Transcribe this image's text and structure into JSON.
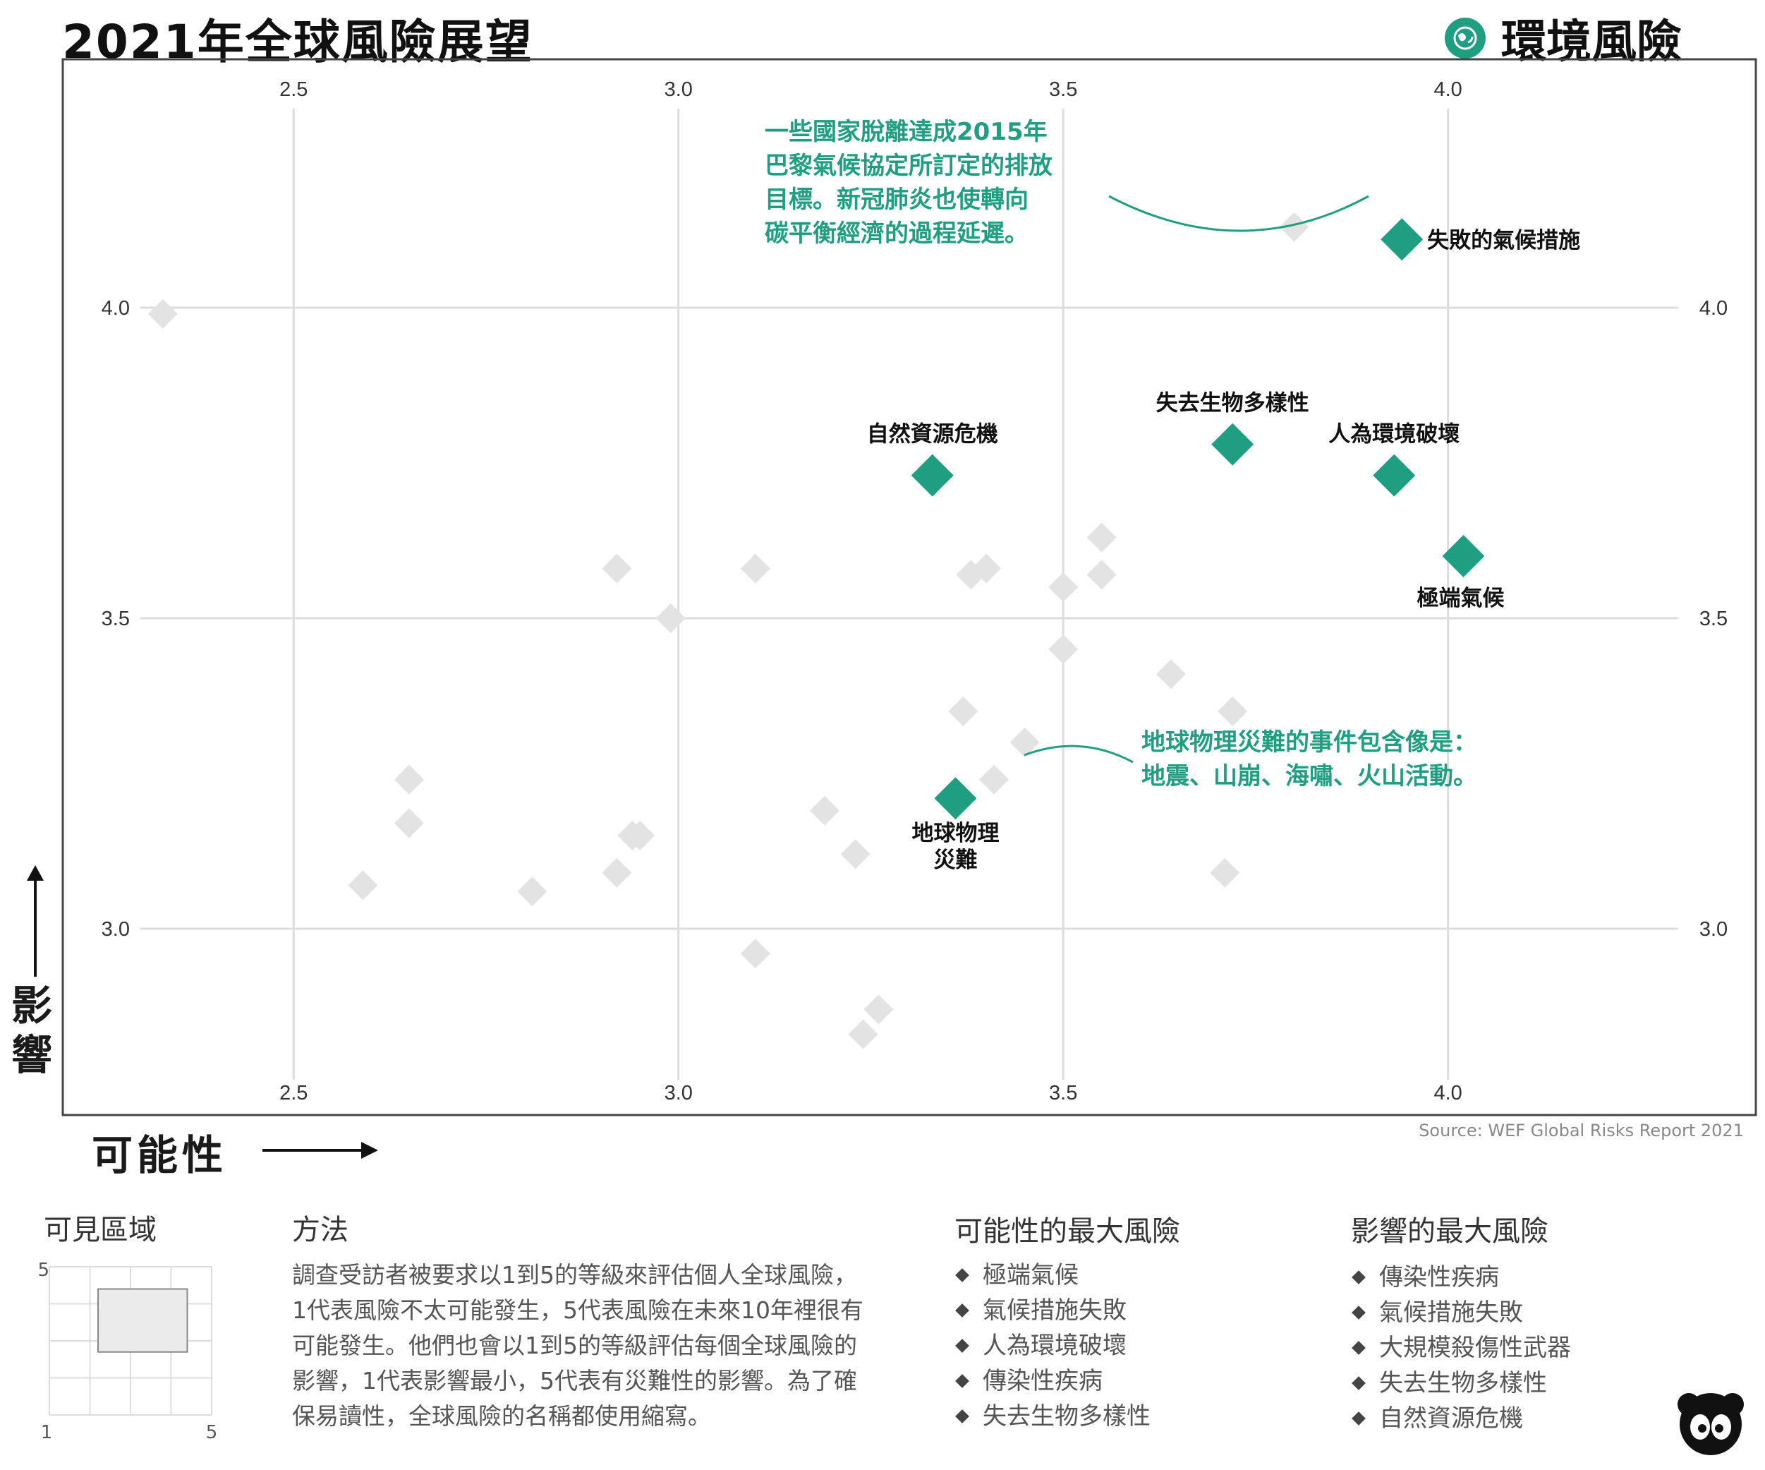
{
  "header": {
    "title": "2021年全球風險展望",
    "category": "環境風險",
    "category_icon": "globe-leaf-icon",
    "accent_color": "#1f9e82"
  },
  "chart_data": {
    "type": "scatter",
    "title": "2021年全球風險展望",
    "xlabel": "可能性",
    "ylabel": "影響",
    "xlim": [
      2.2,
      4.4
    ],
    "ylim": [
      2.7,
      4.4
    ],
    "x_ticks": [
      "2.5",
      "3.0",
      "3.5",
      "4.0"
    ],
    "y_ticks": [
      "3.0",
      "3.5",
      "4.0"
    ],
    "grid": true,
    "highlighted_series": [
      {
        "label": "失敗的氣候措施",
        "x": 3.94,
        "y": 4.11
      },
      {
        "label": "失去生物多樣性",
        "x": 3.72,
        "y": 3.78
      },
      {
        "label": "人為環境破壞",
        "x": 3.93,
        "y": 3.73
      },
      {
        "label": "自然資源危機",
        "x": 3.33,
        "y": 3.73
      },
      {
        "label": "極端氣候",
        "x": 4.02,
        "y": 3.6
      },
      {
        "label": "地球物理災難",
        "x": 3.36,
        "y": 3.21
      }
    ],
    "other_risks": [
      {
        "x": 2.33,
        "y": 3.99
      },
      {
        "x": 3.8,
        "y": 4.13
      },
      {
        "x": 2.92,
        "y": 3.58
      },
      {
        "x": 3.1,
        "y": 3.58
      },
      {
        "x": 2.99,
        "y": 3.5
      },
      {
        "x": 3.38,
        "y": 3.57
      },
      {
        "x": 3.4,
        "y": 3.58
      },
      {
        "x": 3.5,
        "y": 3.55
      },
      {
        "x": 3.55,
        "y": 3.63
      },
      {
        "x": 3.55,
        "y": 3.57
      },
      {
        "x": 3.5,
        "y": 3.45
      },
      {
        "x": 3.64,
        "y": 3.41
      },
      {
        "x": 3.37,
        "y": 3.35
      },
      {
        "x": 3.72,
        "y": 3.35
      },
      {
        "x": 3.45,
        "y": 3.3
      },
      {
        "x": 3.41,
        "y": 3.24
      },
      {
        "x": 2.65,
        "y": 3.24
      },
      {
        "x": 2.65,
        "y": 3.17
      },
      {
        "x": 3.19,
        "y": 3.19
      },
      {
        "x": 2.95,
        "y": 3.15
      },
      {
        "x": 2.94,
        "y": 3.15
      },
      {
        "x": 2.92,
        "y": 3.09
      },
      {
        "x": 2.59,
        "y": 3.07
      },
      {
        "x": 2.81,
        "y": 3.06
      },
      {
        "x": 3.23,
        "y": 3.12
      },
      {
        "x": 3.71,
        "y": 3.09
      },
      {
        "x": 3.1,
        "y": 2.96
      },
      {
        "x": 3.26,
        "y": 2.87
      },
      {
        "x": 3.24,
        "y": 2.83
      }
    ],
    "annotations": [
      {
        "target": "失敗的氣候措施",
        "text": [
          "一些國家脫離達成2015年",
          "巴黎氣候協定所訂定的排放",
          "目標。新冠肺炎也使轉向",
          "碳平衡經濟的過程延遲。"
        ]
      },
      {
        "target": "地球物理災難",
        "text": [
          "地球物理災難的事件包含像是：",
          "地震、山崩、海嘯、火山活動。"
        ]
      }
    ]
  },
  "source": "Source: WEF Global Risks Report 2021",
  "axis_titles": {
    "x": "可能性",
    "y": "影響"
  },
  "inset": {
    "title": "可見區域",
    "x_min_label": "1",
    "x_max_label": "5",
    "y_max_label": "5",
    "visible_x": [
      2.2,
      4.4
    ],
    "visible_y": [
      2.7,
      4.4
    ]
  },
  "method": {
    "title": "方法",
    "lines": [
      "調查受訪者被要求以1到5的等級來評估個人全球風險，",
      "1代表風險不太可能發生，5代表風險在未來10年裡很有",
      "可能發生。他們也會以1到5的等級評估每個全球風險的",
      "影響，1代表影響最小，5代表有災難性的影響。為了確",
      "保易讀性，全球風險的名稱都使用縮寫。"
    ]
  },
  "top_likelihood": {
    "title": "可能性的最大風險",
    "items": [
      "極端氣候",
      "氣候措施失敗",
      "人為環境破壞",
      "傳染性疾病",
      "失去生物多樣性"
    ]
  },
  "top_impact": {
    "title": "影響的最大風險",
    "items": [
      "傳染性疾病",
      "氣候措施失敗",
      "大規模殺傷性武器",
      "失去生物多樣性",
      "自然資源危機"
    ]
  },
  "brand_icon": "brand-logo-icon"
}
